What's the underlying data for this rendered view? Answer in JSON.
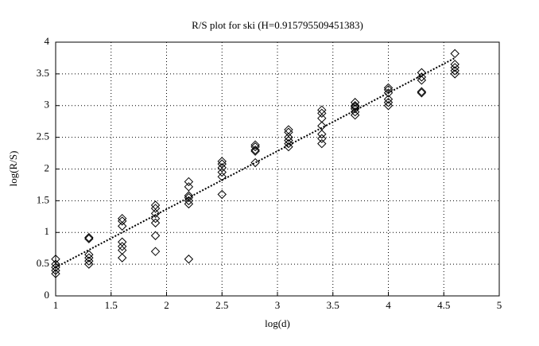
{
  "chart_data": {
    "type": "scatter",
    "title": "R/S plot for ski (H=0.915795509451383)",
    "x_label": "log(d)",
    "y_label": "log(R/S)",
    "xlim": [
      1,
      5
    ],
    "ylim": [
      0,
      4
    ],
    "xticks": [
      1,
      1.5,
      2,
      2.5,
      3,
      3.5,
      4,
      4.5,
      5
    ],
    "yticks": [
      0,
      0.5,
      1,
      1.5,
      2,
      2.5,
      3,
      3.5,
      4
    ],
    "grid": true,
    "series": [
      {
        "type": "scatter",
        "color": "#000000",
        "x": [
          1,
          1,
          1,
          1,
          1,
          1.3,
          1.3,
          1.3,
          1.3,
          1.3,
          1.3,
          1.6,
          1.6,
          1.6,
          1.6,
          1.6,
          1.6,
          1.6,
          1.9,
          1.9,
          1.9,
          1.9,
          1.9,
          1.9,
          1.9,
          2.2,
          2.2,
          2.2,
          2.2,
          2.2,
          2.2,
          2.2,
          2.5,
          2.5,
          2.5,
          2.5,
          2.5,
          2.5,
          2.8,
          2.8,
          2.8,
          2.8,
          2.8,
          3.1,
          3.1,
          3.1,
          3.1,
          3.1,
          3.1,
          3.4,
          3.4,
          3.4,
          3.4,
          3.4,
          3.4,
          3.4,
          3.7,
          3.7,
          3.7,
          3.7,
          3.7,
          3.7,
          4.0,
          4.0,
          4.0,
          4.0,
          4.0,
          4.0,
          4.3,
          4.3,
          4.3,
          4.3,
          4.3,
          4.6,
          4.6,
          4.6,
          4.6,
          4.6
        ],
        "values": [
          0.58,
          0.5,
          0.45,
          0.4,
          0.35,
          0.92,
          0.9,
          0.65,
          0.6,
          0.55,
          0.5,
          1.22,
          1.18,
          1.1,
          0.85,
          0.78,
          0.72,
          0.6,
          1.43,
          1.38,
          1.3,
          1.22,
          1.15,
          0.95,
          0.7,
          1.8,
          1.72,
          1.58,
          1.55,
          1.5,
          1.45,
          0.58,
          2.12,
          2.08,
          2.02,
          1.95,
          1.88,
          1.6,
          2.38,
          2.35,
          2.3,
          2.28,
          2.1,
          2.62,
          2.58,
          2.5,
          2.45,
          2.4,
          2.35,
          2.93,
          2.88,
          2.8,
          2.68,
          2.55,
          2.48,
          2.4,
          3.05,
          3.0,
          2.98,
          2.95,
          2.9,
          2.85,
          3.28,
          3.25,
          3.2,
          3.1,
          3.05,
          3.0,
          3.52,
          3.45,
          3.4,
          3.22,
          3.2,
          3.82,
          3.65,
          3.6,
          3.55,
          3.5
        ]
      },
      {
        "type": "line",
        "color": "#000000",
        "x": [
          1,
          4.6
        ],
        "values": [
          0.45,
          3.75
        ]
      }
    ]
  }
}
